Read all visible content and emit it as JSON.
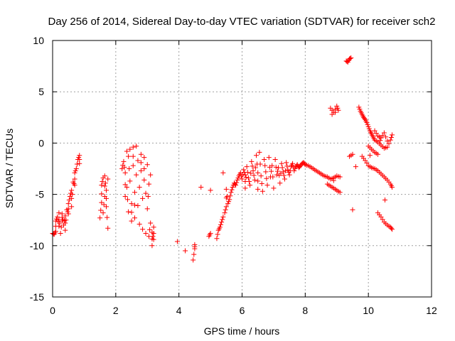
{
  "chart_data": {
    "type": "scatter",
    "title": "Day 256 of 2014, Sidereal Day-to-day VTEC variation (SDTVAR) for receiver sch2",
    "xlabel": "GPS time / hours",
    "ylabel": "SDTVAR / TECUs",
    "xlim": [
      0,
      12
    ],
    "ylim": [
      -15,
      10
    ],
    "xticks": [
      0,
      2,
      4,
      6,
      8,
      10,
      12
    ],
    "yticks": [
      -15,
      -10,
      -5,
      0,
      5,
      10
    ],
    "grid": true,
    "marker": "+",
    "series_color": "#ff0000",
    "segments": [
      [
        [
          0.0,
          -8.8
        ],
        [
          0.05,
          -8.9
        ],
        [
          0.1,
          -8.6
        ],
        [
          0.1,
          -7.6
        ],
        [
          0.15,
          -7.2
        ],
        [
          0.2,
          -8.1
        ],
        [
          0.2,
          -6.8
        ],
        [
          0.25,
          -8.8
        ],
        [
          0.3,
          -7.6
        ],
        [
          0.3,
          -6.9
        ],
        [
          0.35,
          -8.0
        ],
        [
          0.4,
          -7.1
        ],
        [
          0.4,
          -8.5
        ],
        [
          0.45,
          -6.5
        ],
        [
          0.5,
          -6.9
        ],
        [
          0.5,
          -5.9
        ],
        [
          0.55,
          -5.2
        ],
        [
          0.6,
          -4.6
        ],
        [
          0.6,
          -6.2
        ],
        [
          0.65,
          -3.8
        ],
        [
          0.7,
          -4.1
        ],
        [
          0.7,
          -2.9
        ],
        [
          0.75,
          -2.5
        ],
        [
          0.8,
          -1.6
        ],
        [
          0.85,
          -1.2
        ],
        [
          0.85,
          -2.0
        ]
      ],
      [
        [
          1.5,
          -7.3
        ],
        [
          1.55,
          -5.8
        ],
        [
          1.55,
          -4.1
        ],
        [
          1.6,
          -3.4
        ],
        [
          1.6,
          -6.8
        ],
        [
          1.65,
          -5.2
        ],
        [
          1.65,
          -3.2
        ],
        [
          1.7,
          -4.6
        ],
        [
          1.7,
          -6.2
        ],
        [
          1.75,
          -8.3
        ],
        [
          1.75,
          -3.5
        ]
      ],
      [
        [
          2.2,
          -2.5
        ],
        [
          2.25,
          -1.8
        ],
        [
          2.3,
          -2.9
        ],
        [
          2.3,
          -5.2
        ],
        [
          2.35,
          -0.8
        ],
        [
          2.35,
          -4.3
        ],
        [
          2.4,
          -6.7
        ],
        [
          2.4,
          -1.3
        ],
        [
          2.45,
          -3.7
        ],
        [
          2.45,
          -0.6
        ],
        [
          2.5,
          -5.9
        ],
        [
          2.5,
          -7.6
        ],
        [
          2.55,
          -2.2
        ],
        [
          2.55,
          -0.4
        ],
        [
          2.6,
          -4.8
        ],
        [
          2.6,
          -7.3
        ],
        [
          2.65,
          -0.3
        ],
        [
          2.65,
          -3.1
        ],
        [
          2.7,
          -6.1
        ],
        [
          2.7,
          -1.7
        ],
        [
          2.75,
          -4.3
        ],
        [
          2.75,
          -7.9
        ],
        [
          2.8,
          -2.7
        ],
        [
          2.8,
          -1.1
        ],
        [
          2.85,
          -5.4
        ],
        [
          2.85,
          -8.4
        ],
        [
          2.9,
          -3.6
        ],
        [
          2.9,
          -1.4
        ],
        [
          2.95,
          -4.9
        ],
        [
          2.95,
          -8.8
        ],
        [
          3.0,
          -2.1
        ],
        [
          3.0,
          -6.4
        ],
        [
          3.05,
          -4.0
        ],
        [
          3.05,
          -9.1
        ],
        [
          3.1,
          -7.8
        ],
        [
          3.1,
          -3.1
        ],
        [
          3.15,
          -8.7
        ],
        [
          3.15,
          -10.0
        ],
        [
          3.2,
          -8.2
        ],
        [
          3.2,
          -9.4
        ]
      ],
      [
        [
          3.95,
          -9.6
        ],
        [
          4.45,
          -11.4
        ],
        [
          4.5,
          -10.3
        ],
        [
          4.5,
          -9.9
        ],
        [
          4.7,
          -4.3
        ],
        [
          4.95,
          -9.1
        ],
        [
          5.0,
          -8.8
        ],
        [
          5.0,
          -4.6
        ]
      ],
      [
        [
          5.2,
          -9.3
        ],
        [
          5.25,
          -8.5
        ],
        [
          5.3,
          -8.2
        ],
        [
          5.35,
          -7.7
        ],
        [
          5.4,
          -7.2
        ],
        [
          5.4,
          -2.9
        ],
        [
          5.45,
          -6.8
        ],
        [
          5.5,
          -6.2
        ],
        [
          5.5,
          -4.5
        ],
        [
          5.55,
          -5.9
        ],
        [
          5.6,
          -5.5
        ],
        [
          5.65,
          -4.8
        ],
        [
          5.7,
          -4.3
        ],
        [
          5.75,
          -3.9
        ],
        [
          5.8,
          -4.1
        ],
        [
          5.85,
          -3.6
        ],
        [
          5.9,
          -3.2
        ],
        [
          5.95,
          -2.9
        ],
        [
          6.0,
          -3.5
        ],
        [
          6.05,
          -2.6
        ],
        [
          6.1,
          -3.1
        ],
        [
          6.1,
          -4.4
        ],
        [
          6.15,
          -2.3
        ],
        [
          6.2,
          -3.4
        ],
        [
          6.25,
          -4.1
        ],
        [
          6.3,
          -1.8
        ],
        [
          6.35,
          -2.7
        ],
        [
          6.4,
          -3.6
        ],
        [
          6.45,
          -1.2
        ],
        [
          6.5,
          -2.9
        ],
        [
          6.5,
          -4.5
        ],
        [
          6.55,
          -0.9
        ],
        [
          6.6,
          -3.2
        ],
        [
          6.65,
          -4.7
        ],
        [
          6.7,
          -1.6
        ],
        [
          6.75,
          -2.8
        ],
        [
          6.8,
          -4.1
        ],
        [
          6.85,
          -1.4
        ],
        [
          6.9,
          -3.3
        ],
        [
          6.95,
          -2.2
        ],
        [
          7.0,
          -4.4
        ],
        [
          7.05,
          -1.6
        ],
        [
          7.1,
          -3.1
        ],
        [
          7.15,
          -2.4
        ],
        [
          7.2,
          -3.9
        ],
        [
          7.25,
          -2.0
        ],
        [
          7.3,
          -2.8
        ],
        [
          7.35,
          -3.5
        ],
        [
          7.4,
          -1.9
        ],
        [
          7.45,
          -2.6
        ],
        [
          7.5,
          -3.1
        ],
        [
          7.55,
          -2.3
        ],
        [
          7.6,
          -2.0
        ],
        [
          7.65,
          -2.7
        ],
        [
          7.7,
          -2.3
        ],
        [
          7.75,
          -2.1
        ],
        [
          7.8,
          -2.4
        ],
        [
          7.85,
          -2.2
        ],
        [
          7.9,
          -2.0
        ],
        [
          7.95,
          -1.9
        ],
        [
          8.0,
          -2.1
        ]
      ],
      [
        [
          8.0,
          -2.1
        ],
        [
          8.1,
          -2.2
        ],
        [
          8.2,
          -2.4
        ],
        [
          8.3,
          -2.6
        ],
        [
          8.4,
          -2.8
        ],
        [
          8.5,
          -3.0
        ],
        [
          8.6,
          -3.2
        ],
        [
          8.7,
          -3.3
        ],
        [
          8.8,
          -3.5
        ],
        [
          8.9,
          -3.4
        ],
        [
          9.0,
          -3.2
        ],
        [
          9.1,
          -3.3
        ],
        [
          8.7,
          -4.0
        ],
        [
          8.8,
          -4.2
        ],
        [
          8.9,
          -4.4
        ],
        [
          9.0,
          -4.6
        ],
        [
          9.1,
          -4.8
        ],
        [
          8.8,
          3.4
        ],
        [
          8.9,
          3.0
        ],
        [
          9.0,
          3.6
        ],
        [
          9.05,
          3.2
        ],
        [
          8.85,
          2.8
        ]
      ],
      [
        [
          9.3,
          8.0
        ],
        [
          9.35,
          7.9
        ],
        [
          9.4,
          8.2
        ],
        [
          9.45,
          8.3
        ],
        [
          9.4,
          -1.3
        ],
        [
          9.5,
          -1.1
        ],
        [
          9.5,
          -6.5
        ],
        [
          9.6,
          -2.3
        ]
      ],
      [
        [
          9.7,
          3.5
        ],
        [
          9.75,
          3.1
        ],
        [
          9.8,
          2.8
        ],
        [
          9.85,
          2.5
        ],
        [
          9.9,
          2.3
        ],
        [
          9.95,
          2.0
        ],
        [
          10.0,
          1.6
        ],
        [
          10.05,
          1.2
        ],
        [
          10.1,
          0.9
        ],
        [
          10.15,
          0.6
        ],
        [
          10.2,
          0.3
        ],
        [
          10.3,
          0.1
        ],
        [
          10.4,
          -0.2
        ],
        [
          10.5,
          -0.5
        ],
        [
          10.6,
          -0.4
        ],
        [
          10.7,
          0.3
        ],
        [
          10.75,
          0.8
        ],
        [
          10.0,
          -0.3
        ],
        [
          10.1,
          -0.6
        ],
        [
          10.2,
          -0.9
        ],
        [
          10.3,
          -1.1
        ],
        [
          9.8,
          -1.3
        ],
        [
          9.9,
          -1.7
        ],
        [
          10.0,
          -2.2
        ],
        [
          10.1,
          -2.4
        ],
        [
          10.2,
          -2.5
        ],
        [
          10.3,
          -2.7
        ],
        [
          10.4,
          -3.0
        ],
        [
          10.5,
          -3.3
        ],
        [
          10.6,
          -3.6
        ],
        [
          10.7,
          -4.0
        ],
        [
          10.75,
          -4.3
        ],
        [
          10.3,
          -6.8
        ],
        [
          10.4,
          -7.2
        ],
        [
          10.5,
          -7.7
        ],
        [
          10.6,
          -8.0
        ],
        [
          10.7,
          -8.2
        ],
        [
          10.75,
          -8.4
        ],
        [
          10.2,
          1.2
        ],
        [
          10.3,
          0.7
        ],
        [
          10.4,
          0.5
        ],
        [
          10.5,
          1.0
        ],
        [
          10.6,
          0.2
        ]
      ]
    ]
  }
}
